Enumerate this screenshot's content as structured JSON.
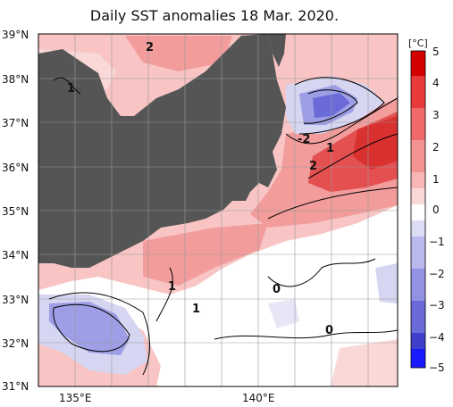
{
  "title": "Daily SST anomalies 18 Mar. 2020.",
  "axes": {
    "lat_labels": [
      "39°N",
      "38°N",
      "37°N",
      "36°N",
      "35°N",
      "34°N",
      "33°N",
      "32°N",
      "31°N"
    ],
    "lon_labels": [
      "135°E",
      "140°E"
    ]
  },
  "colorbar": {
    "unit": "[°C]",
    "ticks": [
      "5",
      "4",
      "3",
      "2",
      "1",
      "0",
      "−1",
      "−2",
      "−3",
      "−4",
      "−5"
    ],
    "colors": [
      "#d40000",
      "#e83a3a",
      "#f06a6a",
      "#f59393",
      "#f8b6b6",
      "#fbd8d8",
      "#ffffff",
      "#dcdcf5",
      "#b9b9ee",
      "#9292e3",
      "#6a6ad8",
      "#3f3fcc",
      "#1a1aff"
    ]
  },
  "contour_labels": [
    "2",
    "1",
    "-2",
    "1",
    "2",
    "1",
    "1",
    "0",
    "0"
  ],
  "colors": {
    "land": "#555555",
    "frame": "#000000",
    "grid": "#999999",
    "warm_light": "#f8c4c4",
    "warm_mid": "#f29c9c",
    "warm_strong": "#e45050",
    "cool_light": "#d6d6f2",
    "cool_mid": "#9e9ee6"
  }
}
